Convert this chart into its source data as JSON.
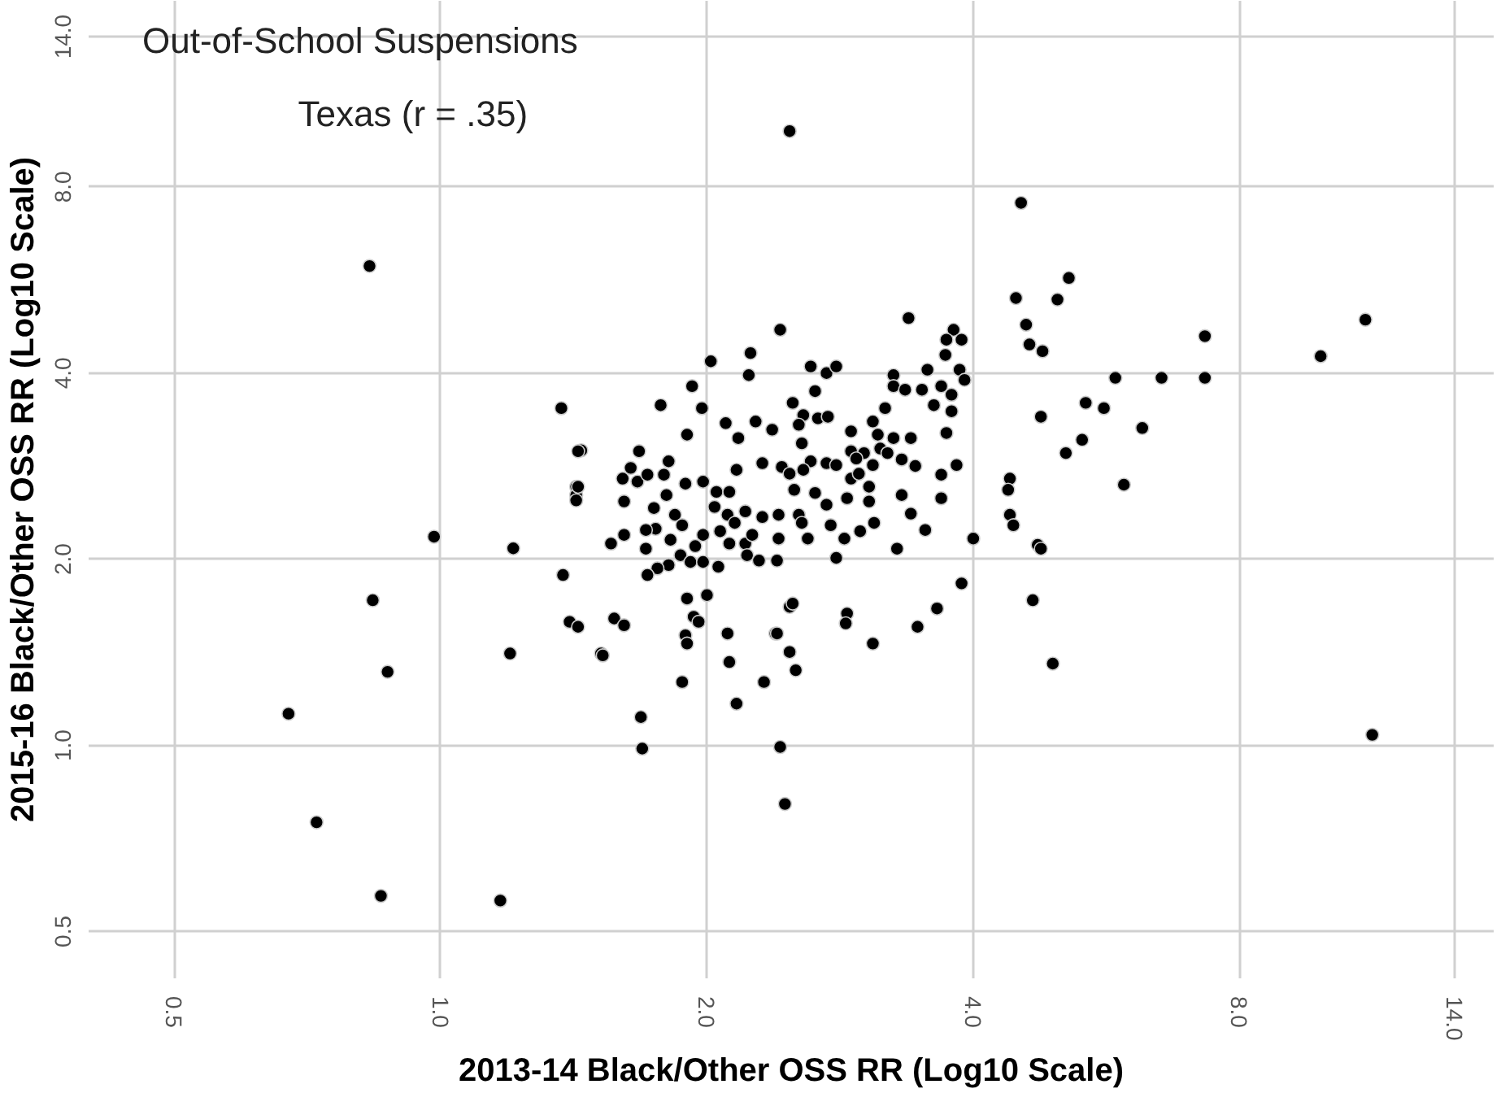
{
  "chart_data": {
    "type": "scatter",
    "title": "Out-of-School Suspensions",
    "subtitle": "Texas (r = .35)",
    "xlabel": "2013-14 Black/Other OSS RR (Log10 Scale)",
    "ylabel": "2015-16 Black/Other OSS RR (Log10 Scale)",
    "log": "xy",
    "grid": true,
    "marker": "circle",
    "xlim": [
      0.4,
      15.5
    ],
    "ylim": [
      0.42,
      16
    ],
    "xticks": [
      {
        "value": 0.5,
        "label": "0.5"
      },
      {
        "value": 1,
        "label": "1.0"
      },
      {
        "value": 2,
        "label": "2.0"
      },
      {
        "value": 4,
        "label": "4.0"
      },
      {
        "value": 8,
        "label": "8.0"
      },
      {
        "value": 14,
        "label": "14.0"
      }
    ],
    "yticks": [
      {
        "value": 0.5,
        "label": "0.5"
      },
      {
        "value": 1,
        "label": "1.0"
      },
      {
        "value": 2,
        "label": "2.0"
      },
      {
        "value": 4,
        "label": "4.0"
      },
      {
        "value": 8,
        "label": "8.0"
      },
      {
        "value": 14,
        "label": "14.0"
      }
    ],
    "series": [
      {
        "color": "#000000",
        "x": [
          2.48,
          0.831,
          0.673,
          0.724,
          0.856,
          1.168,
          0.838,
          0.871,
          0.983,
          1.208,
          1.198,
          1.369,
          1.375,
          1.442,
          1.423,
          1.423,
          1.399,
          1.43,
          1.518,
          1.684,
          1.69,
          1.875,
          1.932,
          1.891,
          2.0,
          2.12,
          2.16,
          2.39,
          2.52,
          2.45,
          2.42,
          2.48,
          2.42,
          2.02,
          2.24,
          2.23,
          1.924,
          1.773,
          1.974,
          1.899,
          2.1,
          2.27,
          2.17,
          2.37,
          1.43,
          1.676,
          1.64,
          1.81,
          1.606,
          1.669,
          1.713,
          1.788,
          1.891,
          1.98,
          2.16,
          2.31,
          2.43,
          1.43,
          1.423,
          1.612,
          1.8,
          1.742,
          1.84,
          2.05,
          2.12,
          2.04,
          2.11,
          2.21,
          2.15,
          2.31,
          2.41,
          1.75,
          1.706,
          1.875,
          1.558,
          1.612,
          1.706,
          1.819,
          1.98,
          1.94,
          2.07,
          2.12,
          2.21,
          2.25,
          2.41,
          1.867,
          1.916,
          1.98,
          2.06,
          2.22,
          2.29,
          2.4,
          1.81,
          1.758,
          1.713,
          1.899,
          1.957,
          2.11,
          2.4,
          2.5,
          2.48,
          1.899,
          1.571,
          1.612,
          1.525,
          2.32,
          4.47,
          3.38,
          4.59,
          4.63,
          4.79,
          3.8,
          3.73,
          3.88,
          3.72,
          3.86,
          3.91,
          2.62,
          2.73,
          2.8,
          3.25,
          3.55,
          3.25,
          3.35,
          3.5,
          3.68,
          3.78,
          3.61,
          3.78,
          2.65,
          2.5,
          2.57,
          2.67,
          2.74,
          3.18,
          3.08,
          4.77,
          2.54,
          2.56,
          2.91,
          3.12,
          3.25,
          3.4,
          3.73,
          5.09,
          2.91,
          3.01,
          3.14,
          3.2,
          2.62,
          2.73,
          2.8,
          2.95,
          3.08,
          3.32,
          3.44,
          3.83,
          2.57,
          2.48,
          2.91,
          2.97,
          3.68,
          4.4,
          4.38,
          2.51,
          2.65,
          2.73,
          2.88,
          3.05,
          3.05,
          3.32,
          3.68,
          2.54,
          2.56,
          2.76,
          2.6,
          2.86,
          2.98,
          3.09,
          3.4,
          3.53,
          4.4,
          4.44,
          4.73,
          4.77,
          3.28,
          4.0,
          2.8,
          2.88,
          2.87,
          3.08,
          3.46,
          3.64,
          3.88,
          4.67,
          4.92,
          5.13,
          5.36,
          5.79,
          5.62,
          5.31,
          6.21,
          6.53,
          7.31,
          7.31,
          5.92,
          9.88,
          11.1,
          11.3,
          4.53,
          4.98
        ],
        "values": [
          9.85,
          5.96,
          1.125,
          0.751,
          0.571,
          0.561,
          1.717,
          1.315,
          2.175,
          2.083,
          1.408,
          3.51,
          1.886,
          3.0,
          2.62,
          2.54,
          1.584,
          1.555,
          1.408,
          1.111,
          0.988,
          1.266,
          1.614,
          1.507,
          1.75,
          1.364,
          1.168,
          1.517,
          1.323,
          0.804,
          0.994,
          1.675,
          4.7,
          4.18,
          4.31,
          3.97,
          3.81,
          3.55,
          3.51,
          3.18,
          3.32,
          3.34,
          3.14,
          3.24,
          2.99,
          2.99,
          2.81,
          2.88,
          2.7,
          2.67,
          2.74,
          2.74,
          2.65,
          2.67,
          2.79,
          2.86,
          2.82,
          2.62,
          2.49,
          2.48,
          2.54,
          2.42,
          2.36,
          2.57,
          2.57,
          2.43,
          2.36,
          2.39,
          2.29,
          2.34,
          2.36,
          2.24,
          2.23,
          2.27,
          2.12,
          2.19,
          2.08,
          2.15,
          2.19,
          2.1,
          2.22,
          2.12,
          2.12,
          2.19,
          2.16,
          2.03,
          1.98,
          1.98,
          1.945,
          2.03,
          1.99,
          1.99,
          1.957,
          1.933,
          1.886,
          1.728,
          1.584,
          1.517,
          1.517,
          1.696,
          1.416,
          1.461,
          1.604,
          1.564,
          1.398,
          1.266,
          5.29,
          4.91,
          4.79,
          4.45,
          4.34,
          4.7,
          4.53,
          4.53,
          4.28,
          4.05,
          3.9,
          4.1,
          4.0,
          4.1,
          3.97,
          4.05,
          3.81,
          3.76,
          3.76,
          3.81,
          3.69,
          3.55,
          3.47,
          3.74,
          3.58,
          3.42,
          3.38,
          3.4,
          3.51,
          3.34,
          3.4,
          3.3,
          3.08,
          3.22,
          3.18,
          3.14,
          3.14,
          3.2,
          2.97,
          2.99,
          2.97,
          3.02,
          2.97,
          2.88,
          2.86,
          2.84,
          2.91,
          2.84,
          2.9,
          2.83,
          2.84,
          2.79,
          2.75,
          2.7,
          2.75,
          2.74,
          2.7,
          2.59,
          2.59,
          2.56,
          2.45,
          2.51,
          2.62,
          2.48,
          2.54,
          2.51,
          2.36,
          2.29,
          2.27,
          2.16,
          2.16,
          2.22,
          2.29,
          2.37,
          2.23,
          2.36,
          2.27,
          2.11,
          2.08,
          2.08,
          2.16,
          2.01,
          1.634,
          1.575,
          1.461,
          1.555,
          1.665,
          1.828,
          1.717,
          1.356,
          5.7,
          3.58,
          3.93,
          3.51,
          3.12,
          3.26,
          3.93,
          3.93,
          4.59,
          2.64,
          4.26,
          4.88,
          1.04,
          7.54,
          5.26
        ]
      }
    ]
  }
}
